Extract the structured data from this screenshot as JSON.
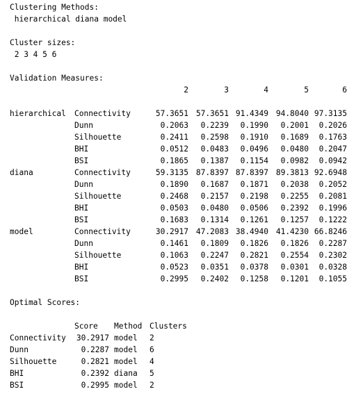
{
  "clustering_methods": {
    "heading": "Clustering Methods:",
    "value": " hierarchical diana model"
  },
  "cluster_sizes": {
    "heading": "Cluster sizes:",
    "value": " 2 3 4 5 6"
  },
  "validation": {
    "heading": "Validation Measures:",
    "columns": [
      "2",
      "3",
      "4",
      "5",
      "6"
    ],
    "groups": [
      {
        "method": "hierarchical",
        "rows": [
          {
            "measure": "Connectivity",
            "values": [
              "57.3651",
              "57.3651",
              "91.4349",
              "94.8040",
              "97.3135"
            ]
          },
          {
            "measure": "Dunn",
            "values": [
              "0.2063",
              "0.2239",
              "0.1990",
              "0.2001",
              "0.2026"
            ]
          },
          {
            "measure": "Silhouette",
            "values": [
              "0.2411",
              "0.2598",
              "0.1910",
              "0.1689",
              "0.1763"
            ]
          },
          {
            "measure": "BHI",
            "values": [
              "0.0512",
              "0.0483",
              "0.0496",
              "0.0480",
              "0.2047"
            ]
          },
          {
            "measure": "BSI",
            "values": [
              "0.1865",
              "0.1387",
              "0.1154",
              "0.0982",
              "0.0942"
            ]
          }
        ]
      },
      {
        "method": "diana",
        "rows": [
          {
            "measure": "Connectivity",
            "values": [
              "59.3135",
              "87.8397",
              "87.8397",
              "89.3813",
              "92.6948"
            ]
          },
          {
            "measure": "Dunn",
            "values": [
              "0.1890",
              "0.1687",
              "0.1871",
              "0.2038",
              "0.2052"
            ]
          },
          {
            "measure": "Silhouette",
            "values": [
              "0.2468",
              "0.2157",
              "0.2198",
              "0.2255",
              "0.2081"
            ]
          },
          {
            "measure": "BHI",
            "values": [
              "0.0503",
              "0.0480",
              "0.0506",
              "0.2392",
              "0.1996"
            ]
          },
          {
            "measure": "BSI",
            "values": [
              "0.1683",
              "0.1314",
              "0.1261",
              "0.1257",
              "0.1222"
            ]
          }
        ]
      },
      {
        "method": "model",
        "rows": [
          {
            "measure": "Connectivity",
            "values": [
              "30.2917",
              "47.2083",
              "38.4940",
              "41.4230",
              "66.8246"
            ]
          },
          {
            "measure": "Dunn",
            "values": [
              "0.1461",
              "0.1809",
              "0.1826",
              "0.1826",
              "0.2287"
            ]
          },
          {
            "measure": "Silhouette",
            "values": [
              "0.1063",
              "0.2247",
              "0.2821",
              "0.2554",
              "0.2302"
            ]
          },
          {
            "measure": "BHI",
            "values": [
              "0.0523",
              "0.0351",
              "0.0378",
              "0.0301",
              "0.0328"
            ]
          },
          {
            "measure": "BSI",
            "values": [
              "0.2995",
              "0.2402",
              "0.1258",
              "0.1201",
              "0.1055"
            ]
          }
        ]
      }
    ]
  },
  "optimal": {
    "heading": "Optimal Scores:",
    "columns": [
      "Score",
      "Method",
      "Clusters"
    ],
    "rows": [
      {
        "measure": "Connectivity",
        "score": "30.2917",
        "method": "model",
        "clusters": "2"
      },
      {
        "measure": "Dunn",
        "score": "0.2287",
        "method": "model",
        "clusters": "6"
      },
      {
        "measure": "Silhouette",
        "score": "0.2821",
        "method": "model",
        "clusters": "4"
      },
      {
        "measure": "BHI",
        "score": "0.2392",
        "method": "diana",
        "clusters": "5"
      },
      {
        "measure": "BSI",
        "score": "0.2995",
        "method": "model",
        "clusters": "2"
      }
    ]
  }
}
